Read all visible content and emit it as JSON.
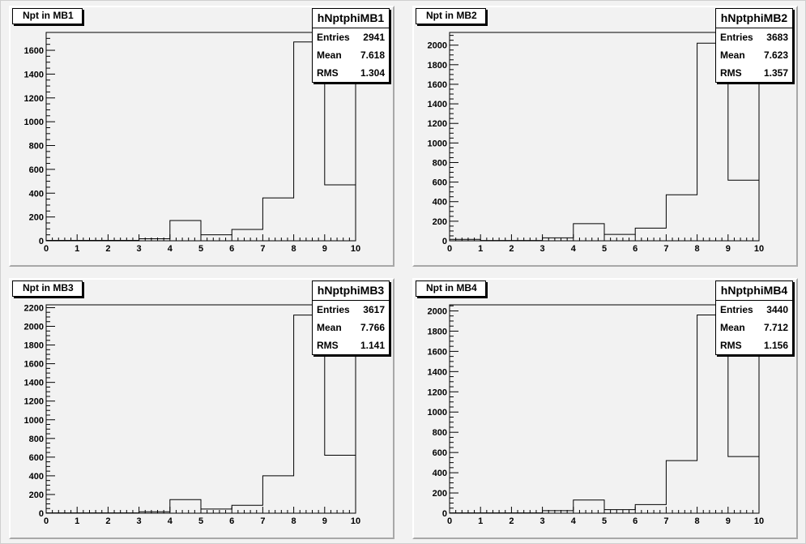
{
  "chart_data": [
    {
      "type": "histogram",
      "title": "Npt in MB1",
      "stats": {
        "name": "hNptphiMB1",
        "entries_label": "Entries",
        "entries": "2941",
        "mean_label": "Mean",
        "mean": "7.618",
        "rms_label": "RMS",
        "rms": "1.304"
      },
      "bin_edges": [
        0,
        1,
        2,
        3,
        4,
        5,
        6,
        7,
        8,
        9,
        10
      ],
      "values": [
        3,
        3,
        3,
        17,
        170,
        50,
        95,
        360,
        1670,
        470
      ],
      "xlim": [
        0,
        10
      ],
      "ylim": [
        0,
        1750
      ],
      "x_ticks": [
        "0",
        "1",
        "2",
        "3",
        "4",
        "5",
        "6",
        "7",
        "8",
        "9",
        "10"
      ],
      "y_ticks": [
        0,
        200,
        400,
        600,
        800,
        1000,
        1200,
        1400,
        1600
      ],
      "y_tick_labels": [
        "0",
        "200",
        "400",
        "600",
        "800",
        "1000",
        "1200",
        "1400",
        "1600"
      ]
    },
    {
      "type": "histogram",
      "title": "Npt in MB2",
      "stats": {
        "name": "hNptphiMB2",
        "entries_label": "Entries",
        "entries": "3683",
        "mean_label": "Mean",
        "mean": "7.623",
        "rms_label": "RMS",
        "rms": "1.357"
      },
      "bin_edges": [
        0,
        1,
        2,
        3,
        4,
        5,
        6,
        7,
        8,
        9,
        10
      ],
      "values": [
        15,
        3,
        3,
        30,
        175,
        65,
        130,
        470,
        2020,
        620
      ],
      "xlim": [
        0,
        10
      ],
      "ylim": [
        0,
        2130
      ],
      "x_ticks": [
        "0",
        "1",
        "2",
        "3",
        "4",
        "5",
        "6",
        "7",
        "8",
        "9",
        "10"
      ],
      "y_ticks": [
        0,
        200,
        400,
        600,
        800,
        1000,
        1200,
        1400,
        1600,
        1800,
        2000
      ],
      "y_tick_labels": [
        "0",
        "200",
        "400",
        "600",
        "800",
        "1000",
        "1200",
        "1400",
        "1600",
        "1800",
        "2000"
      ]
    },
    {
      "type": "histogram",
      "title": "Npt in MB3",
      "stats": {
        "name": "hNptphiMB3",
        "entries_label": "Entries",
        "entries": "3617",
        "mean_label": "Mean",
        "mean": "7.766",
        "rms_label": "RMS",
        "rms": "1.141"
      },
      "bin_edges": [
        0,
        1,
        2,
        3,
        4,
        5,
        6,
        7,
        8,
        9,
        10
      ],
      "values": [
        3,
        3,
        3,
        15,
        145,
        45,
        85,
        400,
        2120,
        620
      ],
      "xlim": [
        0,
        10
      ],
      "ylim": [
        0,
        2230
      ],
      "x_ticks": [
        "0",
        "1",
        "2",
        "3",
        "4",
        "5",
        "6",
        "7",
        "8",
        "9",
        "10"
      ],
      "y_ticks": [
        0,
        200,
        400,
        600,
        800,
        1000,
        1200,
        1400,
        1600,
        1800,
        2000,
        2200
      ],
      "y_tick_labels": [
        "0",
        "200",
        "400",
        "600",
        "800",
        "1000",
        "1200",
        "1400",
        "1600",
        "1800",
        "2000",
        "2200"
      ]
    },
    {
      "type": "histogram",
      "title": "Npt in MB4",
      "stats": {
        "name": "hNptphiMB4",
        "entries_label": "Entries",
        "entries": "3440",
        "mean_label": "Mean",
        "mean": "7.712",
        "rms_label": "RMS",
        "rms": "1.156"
      },
      "bin_edges": [
        0,
        1,
        2,
        3,
        4,
        5,
        6,
        7,
        8,
        9,
        10
      ],
      "values": [
        3,
        3,
        3,
        25,
        130,
        35,
        85,
        520,
        1960,
        560
      ],
      "xlim": [
        0,
        10
      ],
      "ylim": [
        0,
        2060
      ],
      "x_ticks": [
        "0",
        "1",
        "2",
        "3",
        "4",
        "5",
        "6",
        "7",
        "8",
        "9",
        "10"
      ],
      "y_ticks": [
        0,
        200,
        400,
        600,
        800,
        1000,
        1200,
        1400,
        1600,
        1800,
        2000
      ],
      "y_tick_labels": [
        "0",
        "200",
        "400",
        "600",
        "800",
        "1000",
        "1200",
        "1400",
        "1600",
        "1800",
        "2000"
      ]
    }
  ]
}
